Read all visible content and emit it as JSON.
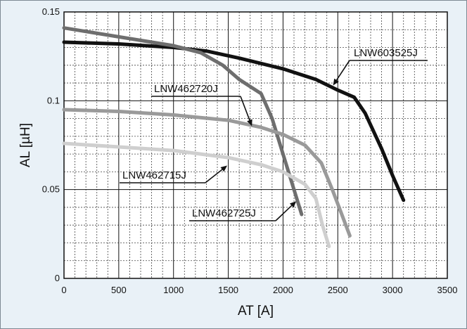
{
  "chart_data": {
    "type": "line",
    "xlabel": "AT [A]",
    "ylabel": "AL [µH]",
    "xlim": [
      0,
      3500
    ],
    "ylim": [
      0,
      0.15
    ],
    "x_ticks": [
      "0",
      "500",
      "1000",
      "1500",
      "2000",
      "2500",
      "3000",
      "3500"
    ],
    "y_ticks": [
      "0",
      "0.05",
      "0.1",
      "0.15"
    ],
    "grid": true,
    "legend": "none",
    "series": [
      {
        "name": "LNW603525J",
        "color": "#111111",
        "x": [
          0,
          500,
          1000,
          1300,
          1600,
          2000,
          2300,
          2500,
          2650,
          2750,
          2900,
          3000,
          3100
        ],
        "y": [
          0.133,
          0.132,
          0.13,
          0.128,
          0.124,
          0.118,
          0.112,
          0.106,
          0.102,
          0.093,
          0.073,
          0.058,
          0.044
        ],
        "label_anchor": [
          2450,
          0.108
        ]
      },
      {
        "name": "LNW462720J",
        "color": "#6e6e6e",
        "x": [
          0,
          500,
          1000,
          1250,
          1450,
          1600,
          1800,
          1900,
          2000,
          2100,
          2170
        ],
        "y": [
          0.141,
          0.136,
          0.131,
          0.127,
          0.12,
          0.112,
          0.104,
          0.09,
          0.07,
          0.05,
          0.036
        ],
        "label_anchor": [
          1720,
          0.085
        ]
      },
      {
        "name": "LNW462715J",
        "color": "#cfcfcf",
        "x": [
          0,
          500,
          1000,
          1500,
          1800,
          2000,
          2200,
          2300,
          2360,
          2420
        ],
        "y": [
          0.076,
          0.074,
          0.072,
          0.068,
          0.064,
          0.06,
          0.053,
          0.045,
          0.03,
          0.018
        ],
        "label_anchor": [
          1500,
          0.064
        ]
      },
      {
        "name": "LNW462725J",
        "color": "#9a9a9a",
        "x": [
          0,
          500,
          1000,
          1500,
          1800,
          2000,
          2200,
          2350,
          2450,
          2530,
          2610
        ],
        "y": [
          0.095,
          0.094,
          0.092,
          0.089,
          0.085,
          0.081,
          0.075,
          0.065,
          0.05,
          0.037,
          0.024
        ],
        "label_anchor": [
          2130,
          0.044
        ]
      }
    ]
  }
}
